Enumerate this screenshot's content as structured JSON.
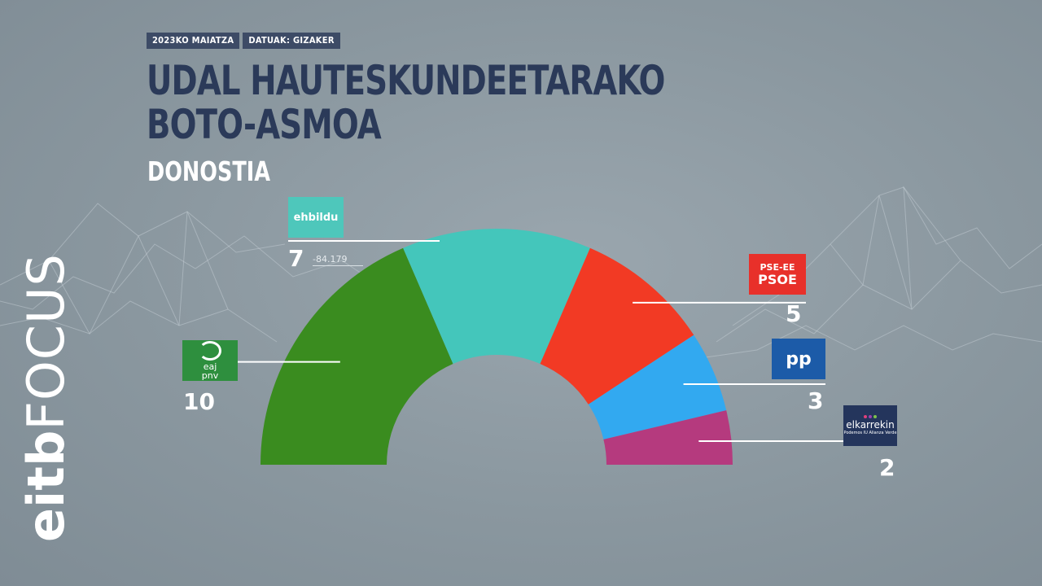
{
  "header": {
    "date_tag": "2023KO MAIATZA",
    "source_tag": "DATUAK: GIZAKER",
    "title_line1": "UDAL HAUTESKUNDEETARAKO",
    "title_line2": "BOTO-ASMOA",
    "subtitle": "DONOSTIA"
  },
  "brand": {
    "eitb": "eitb",
    "focus": "FOCUS"
  },
  "extra_label": "-84.179",
  "parties": {
    "ehbildu": {
      "logo_text": "ehbildu"
    },
    "eaj": {
      "logo_line1": "eaj",
      "logo_line2": "pnv"
    },
    "psoe": {
      "logo_line1": "PSE-EE",
      "logo_line2": "PSOE"
    },
    "pp": {
      "logo_text": "pp"
    },
    "elkarrekin": {
      "logo_line1": "elkarrekin",
      "logo_line2": "Podemos IU Alianza Verde"
    }
  },
  "colors": {
    "eaj": "#3a8c1f",
    "ehbildu": "#44c6bb",
    "psoe": "#f23a24",
    "pp": "#32a9f0",
    "elkarrekin": "#b53a7e"
  },
  "chart_data": {
    "type": "pie",
    "variant": "hemicycle",
    "title": "UDAL HAUTESKUNDEETARAKO BOTO-ASMOA",
    "subtitle": "DONOSTIA",
    "total_seats": 27,
    "series": [
      {
        "name": "EAJ-PNV",
        "value": 10,
        "color": "#3a8c1f"
      },
      {
        "name": "EH Bildu",
        "value": 7,
        "color": "#44c6bb"
      },
      {
        "name": "PSE-EE PSOE",
        "value": 5,
        "color": "#f23a24"
      },
      {
        "name": "PP",
        "value": 3,
        "color": "#32a9f0"
      },
      {
        "name": "Elkarrekin Podemos",
        "value": 2,
        "color": "#b53a7e"
      }
    ],
    "seats_labels": [
      "10",
      "7",
      "5",
      "3",
      "2"
    ]
  }
}
